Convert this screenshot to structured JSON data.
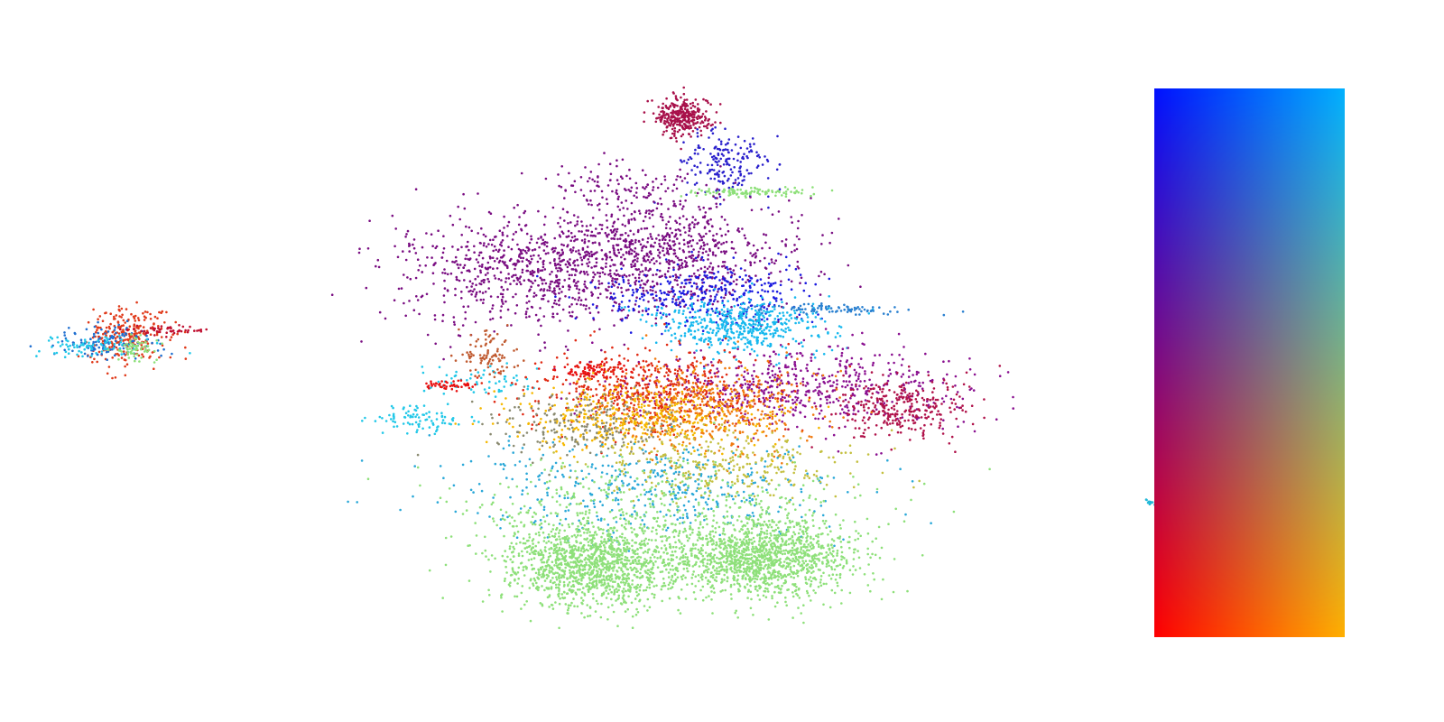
{
  "chart_data": {
    "type": "scatter",
    "title": "",
    "xlabel": "",
    "ylabel": "",
    "axes_visible": false,
    "grid": false,
    "legend": "colormap-square-right",
    "colormap_corners": {
      "top_left": "#0010ff",
      "top_right": "#00b0ff",
      "bottom_left": "#ff0000",
      "bottom_right": "#ffb000"
    },
    "xlim": [
      -10,
      10
    ],
    "ylim": [
      -10,
      10
    ],
    "seed": 7,
    "clusters": [
      {
        "name": "",
        "cx": -8.35,
        "cy": 0.75,
        "sx": 0.35,
        "sy": 0.45,
        "n": 260,
        "c": "#e03a1a"
      },
      {
        "name": "",
        "cx": -8.6,
        "cy": 0.6,
        "sx": 0.5,
        "sy": 0.25,
        "n": 120,
        "c": "#1f6fd0"
      },
      {
        "name": "",
        "cx": -8.9,
        "cy": 0.45,
        "sx": 0.55,
        "sy": 0.15,
        "n": 80,
        "c": "#20c8e8"
      },
      {
        "name": "",
        "cx": -7.6,
        "cy": 0.95,
        "sx": 0.35,
        "sy": 0.08,
        "n": 50,
        "c": "#c01030"
      },
      {
        "name": "",
        "cx": -8.2,
        "cy": 0.35,
        "sx": 0.2,
        "sy": 0.2,
        "n": 60,
        "c": "#8ee07a"
      },
      {
        "name": "",
        "cx": -3.0,
        "cy": -1.8,
        "sx": 0.45,
        "sy": 0.2,
        "n": 90,
        "c": "#22c8e8"
      },
      {
        "name": "",
        "cx": -1.8,
        "cy": -0.6,
        "sx": 0.6,
        "sy": 0.25,
        "n": 60,
        "c": "#22c8e8"
      },
      {
        "name": "",
        "cx": 1.85,
        "cy": 7.5,
        "sx": 0.25,
        "sy": 0.3,
        "n": 320,
        "c": "#a8104a"
      },
      {
        "name": "",
        "cx": 2.6,
        "cy": 6.1,
        "sx": 0.45,
        "sy": 0.5,
        "n": 180,
        "c": "#2a20cc"
      },
      {
        "name": "",
        "cx": 3.1,
        "cy": 5.2,
        "sx": 0.55,
        "sy": 0.06,
        "n": 110,
        "c": "#8ee07a"
      },
      {
        "name": "",
        "cx": 0.8,
        "cy": 5.3,
        "sx": 0.8,
        "sy": 0.4,
        "n": 120,
        "c": "#7a0e82"
      },
      {
        "name": "",
        "cx": -1.0,
        "cy": 2.8,
        "sx": 1.3,
        "sy": 0.9,
        "n": 700,
        "c": "#7a0e82"
      },
      {
        "name": "",
        "cx": 1.4,
        "cy": 3.3,
        "sx": 1.3,
        "sy": 0.8,
        "n": 800,
        "c": "#7a0e82"
      },
      {
        "name": "",
        "cx": 2.2,
        "cy": 2.0,
        "sx": 0.9,
        "sy": 0.5,
        "n": 350,
        "c": "#1a1ae0"
      },
      {
        "name": "",
        "cx": 2.9,
        "cy": 1.1,
        "sx": 0.8,
        "sy": 0.4,
        "n": 500,
        "c": "#16b8ee"
      },
      {
        "name": "",
        "cx": 4.5,
        "cy": 1.6,
        "sx": 0.8,
        "sy": 0.08,
        "n": 90,
        "c": "#2a80d0"
      },
      {
        "name": "",
        "cx": 4.0,
        "cy": -0.8,
        "sx": 1.6,
        "sy": 0.6,
        "n": 600,
        "c": "#8a1090"
      },
      {
        "name": "",
        "cx": 5.9,
        "cy": -1.4,
        "sx": 0.6,
        "sy": 0.5,
        "n": 300,
        "c": "#b0124a"
      },
      {
        "name": "",
        "cx": 1.3,
        "cy": -0.9,
        "sx": 1.1,
        "sy": 0.6,
        "n": 550,
        "c": "#e02a14"
      },
      {
        "name": "",
        "cx": 1.1,
        "cy": -1.7,
        "sx": 1.2,
        "sy": 0.5,
        "n": 500,
        "c": "#f5b800"
      },
      {
        "name": "",
        "cx": 2.3,
        "cy": -1.5,
        "sx": 1.0,
        "sy": 0.7,
        "n": 420,
        "c": "#f07a10"
      },
      {
        "name": "",
        "cx": 0.0,
        "cy": -2.0,
        "sx": 0.8,
        "sy": 0.5,
        "n": 220,
        "c": "#8a8a70"
      },
      {
        "name": "",
        "cx": 1.4,
        "cy": -4.0,
        "sx": 1.8,
        "sy": 0.7,
        "n": 450,
        "c": "#2aa8d8"
      },
      {
        "name": "",
        "cx": 2.5,
        "cy": -3.2,
        "sx": 1.2,
        "sy": 0.5,
        "n": 300,
        "c": "#c4c040"
      },
      {
        "name": "",
        "cx": 0.2,
        "cy": -6.3,
        "sx": 0.85,
        "sy": 0.65,
        "n": 1300,
        "c": "#8ee07a"
      },
      {
        "name": "",
        "cx": 3.3,
        "cy": -6.1,
        "sx": 0.85,
        "sy": 0.6,
        "n": 1300,
        "c": "#8ee07a"
      },
      {
        "name": "",
        "cx": 1.6,
        "cy": -4.8,
        "sx": 1.8,
        "sy": 0.8,
        "n": 500,
        "c": "#8ee07a"
      },
      {
        "name": "",
        "cx": -1.7,
        "cy": 0.2,
        "sx": 0.25,
        "sy": 0.35,
        "n": 90,
        "c": "#c05a30"
      },
      {
        "name": "",
        "cx": -2.4,
        "cy": -0.75,
        "sx": 0.2,
        "sy": 0.08,
        "n": 50,
        "c": "#e81010"
      },
      {
        "name": "",
        "cx": 0.2,
        "cy": -0.3,
        "sx": 0.35,
        "sy": 0.12,
        "n": 80,
        "c": "#e81010"
      },
      {
        "name": "",
        "cx": 10.4,
        "cy": -4.35,
        "sx": 0.05,
        "sy": 0.03,
        "n": 12,
        "c": "#22b8d8"
      }
    ]
  }
}
